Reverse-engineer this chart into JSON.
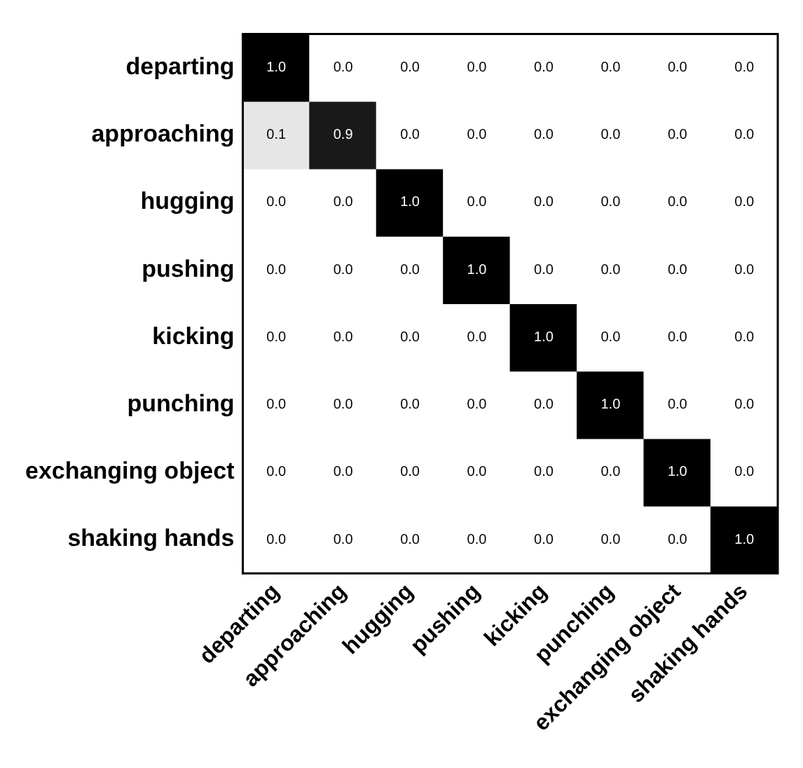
{
  "chart_data": {
    "type": "heatmap",
    "categories": [
      "departing",
      "approaching",
      "hugging",
      "pushing",
      "kicking",
      "punching",
      "exchanging object",
      "shaking hands"
    ],
    "y_categories": [
      "departing",
      "approaching",
      "hugging",
      "pushing",
      "kicking",
      "punching",
      "exchanging object",
      "shaking hands"
    ],
    "cells": [
      [
        1.0,
        0.0,
        0.0,
        0.0,
        0.0,
        0.0,
        0.0,
        0.0
      ],
      [
        0.1,
        0.9,
        0.0,
        0.0,
        0.0,
        0.0,
        0.0,
        0.0
      ],
      [
        0.0,
        0.0,
        1.0,
        0.0,
        0.0,
        0.0,
        0.0,
        0.0
      ],
      [
        0.0,
        0.0,
        0.0,
        1.0,
        0.0,
        0.0,
        0.0,
        0.0
      ],
      [
        0.0,
        0.0,
        0.0,
        0.0,
        1.0,
        0.0,
        0.0,
        0.0
      ],
      [
        0.0,
        0.0,
        0.0,
        0.0,
        0.0,
        1.0,
        0.0,
        0.0
      ],
      [
        0.0,
        0.0,
        0.0,
        0.0,
        0.0,
        0.0,
        1.0,
        0.0
      ],
      [
        0.0,
        0.0,
        0.0,
        0.0,
        0.0,
        0.0,
        0.0,
        1.0
      ]
    ],
    "cell_labels": [
      [
        "1.0",
        "0.0",
        "0.0",
        "0.0",
        "0.0",
        "0.0",
        "0.0",
        "0.0"
      ],
      [
        "0.1",
        "0.9",
        "0.0",
        "0.0",
        "0.0",
        "0.0",
        "0.0",
        "0.0"
      ],
      [
        "0.0",
        "0.0",
        "1.0",
        "0.0",
        "0.0",
        "0.0",
        "0.0",
        "0.0"
      ],
      [
        "0.0",
        "0.0",
        "0.0",
        "1.0",
        "0.0",
        "0.0",
        "0.0",
        "0.0"
      ],
      [
        "0.0",
        "0.0",
        "0.0",
        "0.0",
        "1.0",
        "0.0",
        "0.0",
        "0.0"
      ],
      [
        "0.0",
        "0.0",
        "0.0",
        "0.0",
        "0.0",
        "1.0",
        "0.0",
        "0.0"
      ],
      [
        "0.0",
        "0.0",
        "0.0",
        "0.0",
        "0.0",
        "0.0",
        "1.0",
        "0.0"
      ],
      [
        "0.0",
        "0.0",
        "0.0",
        "0.0",
        "0.0",
        "0.0",
        "0.0",
        "1.0"
      ]
    ]
  }
}
